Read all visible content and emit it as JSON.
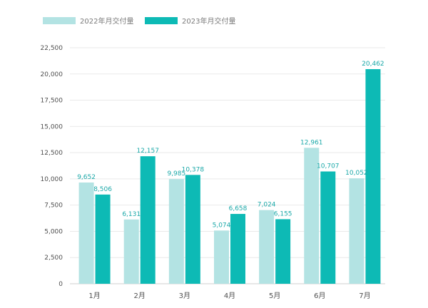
{
  "chart_data": {
    "type": "bar",
    "categories": [
      "1月",
      "2月",
      "3月",
      "4月",
      "5月",
      "6月",
      "7月"
    ],
    "series": [
      {
        "name": "2022年月交付量",
        "color": "#b3e3e3",
        "values": [
          9652,
          6131,
          9985,
          5074,
          7024,
          12961,
          10052
        ],
        "labels": [
          "9,652",
          "6,131",
          "9,985",
          "5,074",
          "7,024",
          "12,961",
          "10,052"
        ]
      },
      {
        "name": "2023年月交付量",
        "color": "#0dbab5",
        "values": [
          8506,
          12157,
          10378,
          6658,
          6155,
          10707,
          20462
        ],
        "labels": [
          "8,506",
          "12,157",
          "10,378",
          "6,658",
          "6,155",
          "10,707",
          "20,462"
        ]
      }
    ],
    "ylim": [
      0,
      22500
    ],
    "yticks": [
      0,
      2500,
      5000,
      7500,
      10000,
      12500,
      15000,
      17500,
      20000,
      22500
    ],
    "ytick_labels": [
      "0",
      "2,500",
      "5,000",
      "7,500",
      "10,000",
      "12,500",
      "15,000",
      "17,500",
      "20,000",
      "22,500"
    ],
    "grid": true,
    "legend_position": "top-left",
    "title": "",
    "xlabel": "",
    "ylabel": ""
  }
}
